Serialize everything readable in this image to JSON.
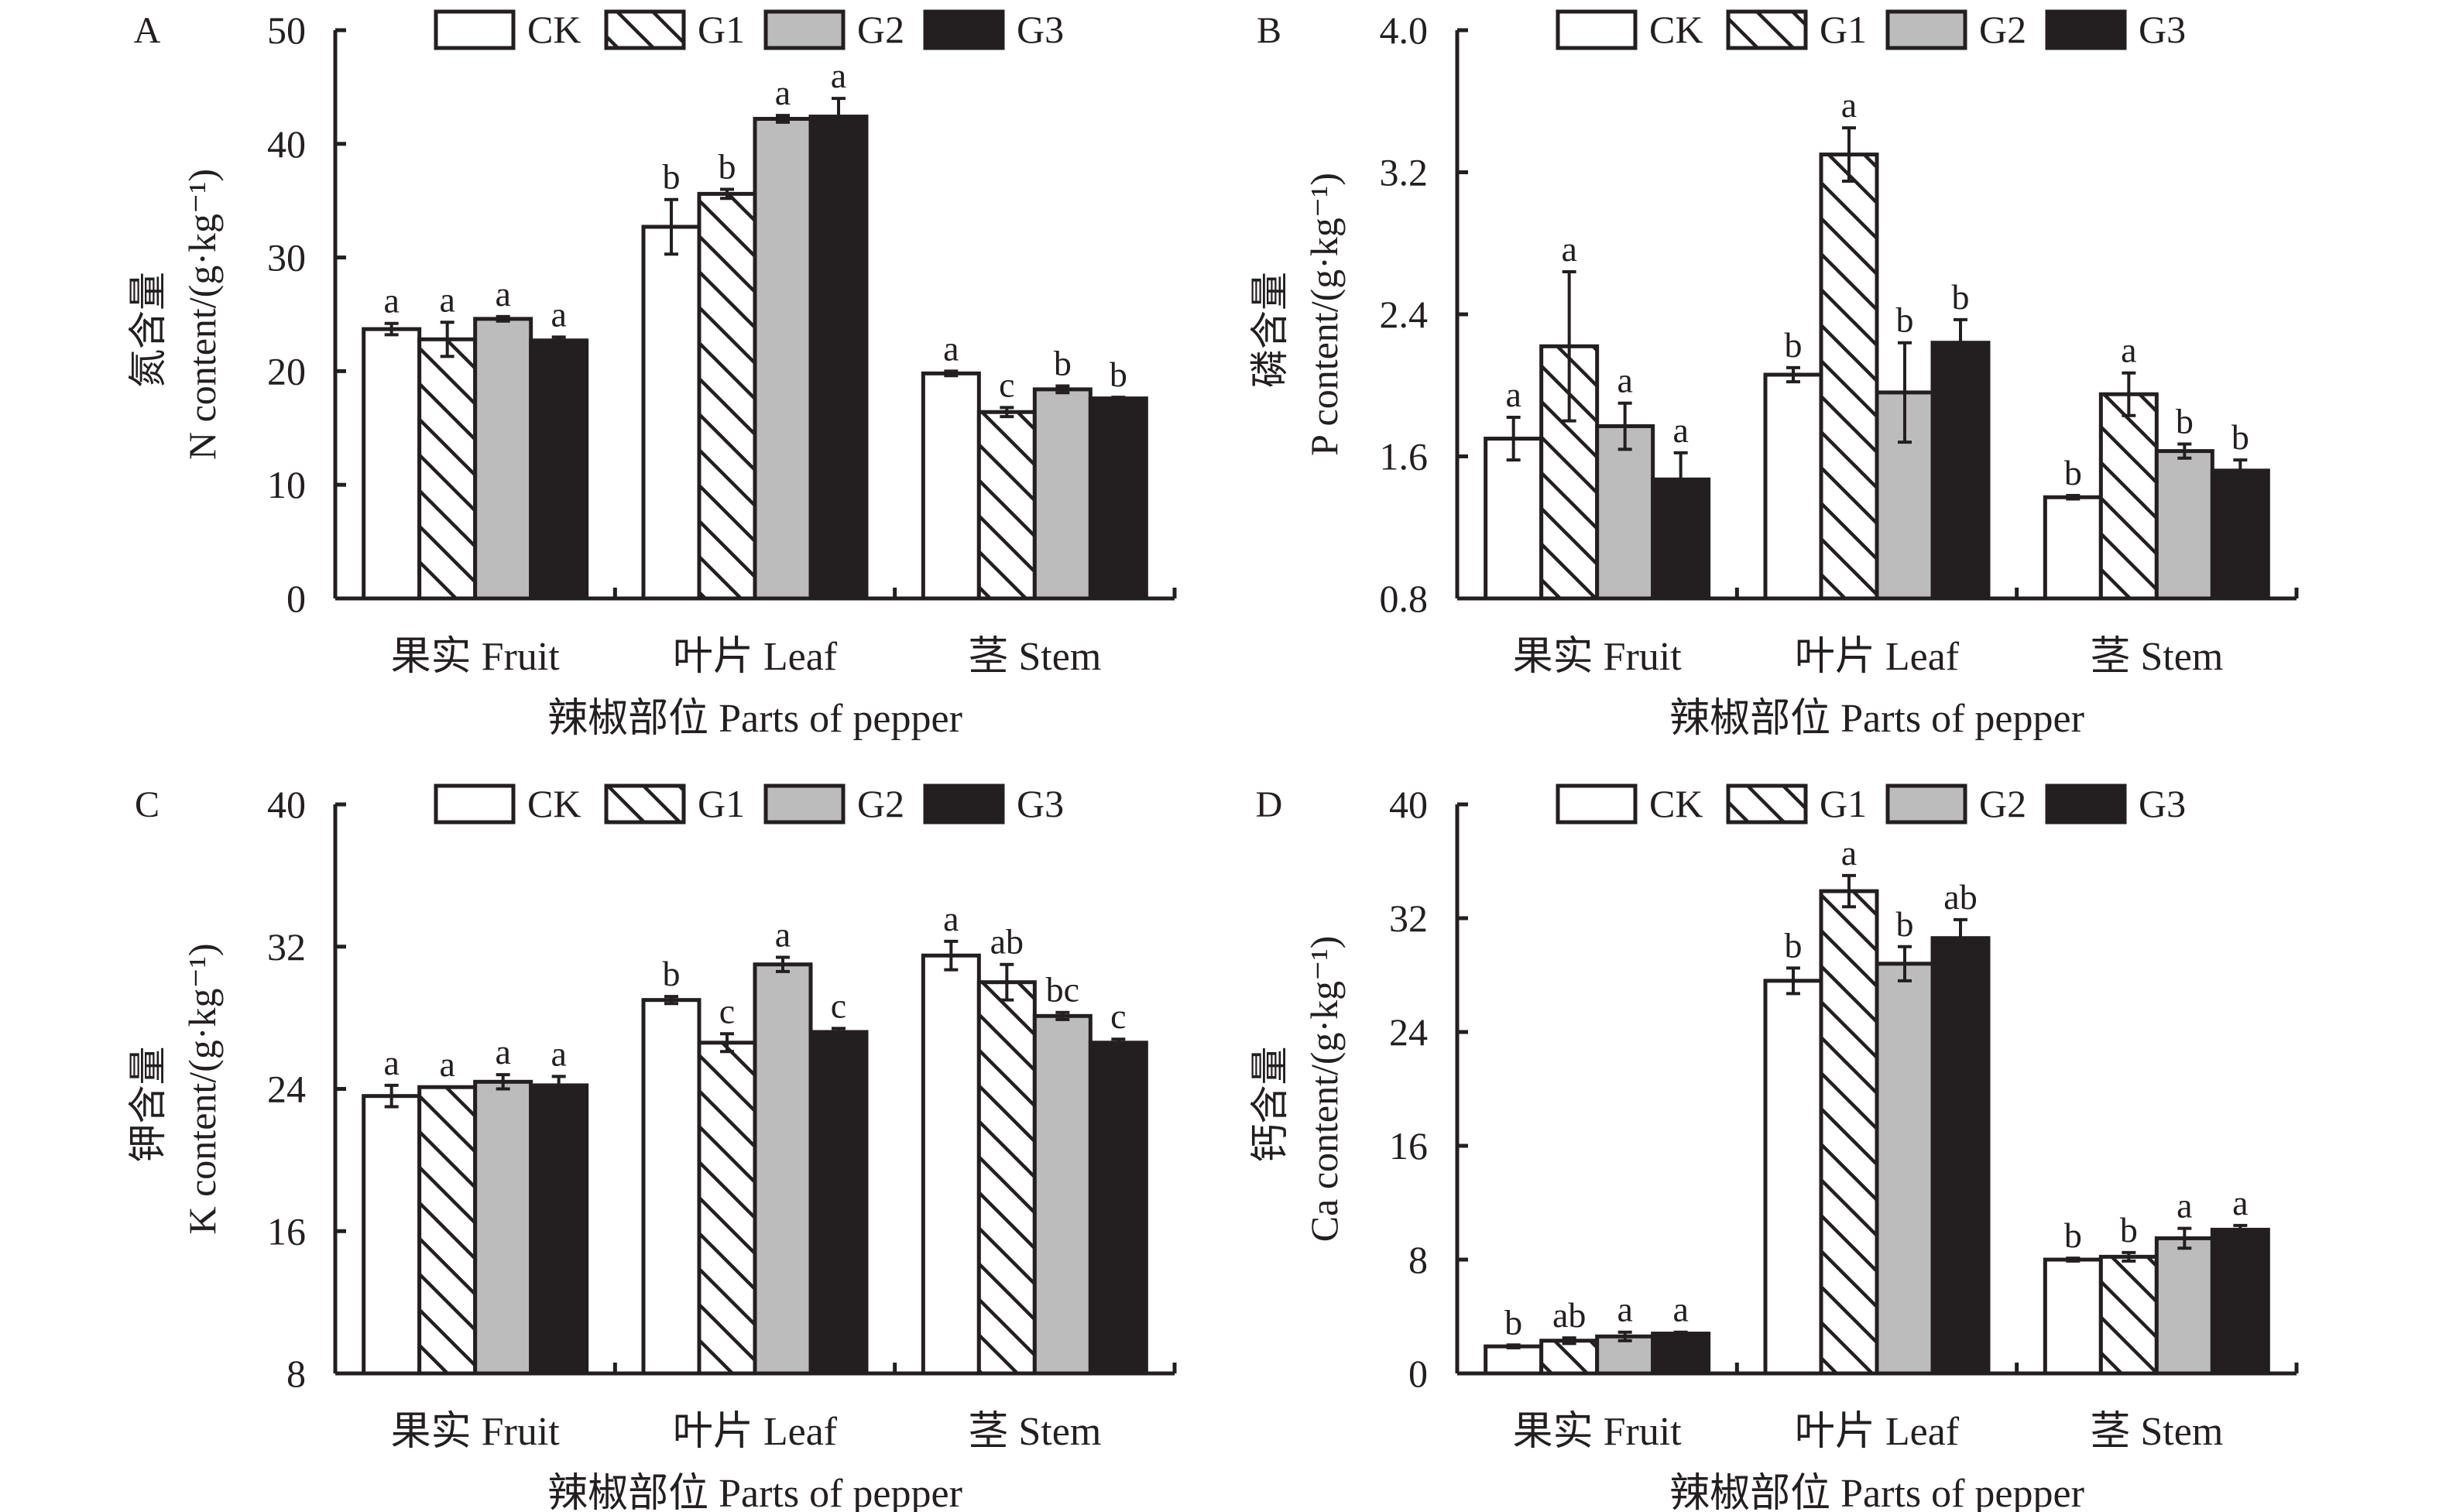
{
  "figure": {
    "legend": [
      {
        "key": "CK",
        "label": "CK",
        "fill": "#ffffff",
        "pattern": "none"
      },
      {
        "key": "G1",
        "label": "G1",
        "fill": "#ffffff",
        "pattern": "diagonal-hatch"
      },
      {
        "key": "G2",
        "label": "G2",
        "fill": "#bcbcbc",
        "pattern": "none"
      },
      {
        "key": "G3",
        "label": "G3",
        "fill": "#231f20",
        "pattern": "none"
      }
    ],
    "colors": {
      "ink": "#231f20",
      "gray": "#bcbcbc",
      "white": "#ffffff"
    }
  },
  "chart_data": [
    {
      "panel": "A",
      "type": "bar",
      "title": "",
      "ylabel_cn": "氮含量",
      "ylabel_en": "N content/(g·kg⁻¹)",
      "xlabel": "辣椒部位 Parts of pepper",
      "categories": [
        "果实 Fruit",
        "叶片 Leaf",
        "茎 Stem"
      ],
      "ylim": [
        0,
        50
      ],
      "yticks": [
        0,
        10,
        20,
        30,
        40,
        50
      ],
      "ytick_labels": [
        "0",
        "10",
        "20",
        "30",
        "40",
        "50"
      ],
      "legend_position": "top-center",
      "grid": false,
      "series": [
        {
          "name": "CK",
          "values": [
            23.7,
            32.7,
            19.8
          ],
          "errors": [
            0.5,
            2.4,
            0.2
          ],
          "letters": [
            "a",
            "b",
            "a"
          ]
        },
        {
          "name": "G1",
          "values": [
            22.8,
            35.6,
            16.4
          ],
          "errors": [
            1.5,
            0.4,
            0.4
          ],
          "letters": [
            "a",
            "b",
            "c"
          ]
        },
        {
          "name": "G2",
          "values": [
            24.6,
            42.2,
            18.4
          ],
          "errors": [
            0.2,
            0.3,
            0.3
          ],
          "letters": [
            "a",
            "a",
            "b"
          ]
        },
        {
          "name": "G3",
          "values": [
            22.7,
            42.4,
            17.6
          ],
          "errors": [
            0.3,
            1.6,
            0.1
          ],
          "letters": [
            "a",
            "a",
            "b"
          ]
        }
      ]
    },
    {
      "panel": "B",
      "type": "bar",
      "title": "",
      "ylabel_cn": "磷含量",
      "ylabel_en": "P content/(g·kg⁻¹)",
      "xlabel": "辣椒部位 Parts of pepper",
      "categories": [
        "果实 Fruit",
        "叶片 Leaf",
        "茎 Stem"
      ],
      "ylim": [
        0.8,
        4.0
      ],
      "yticks": [
        0.8,
        1.6,
        2.4,
        3.2,
        4.0
      ],
      "ytick_labels": [
        "0.8",
        "1.6",
        "2.4",
        "3.2",
        "4.0"
      ],
      "legend_position": "top-center",
      "grid": false,
      "series": [
        {
          "name": "CK",
          "values": [
            1.7,
            2.06,
            1.37
          ],
          "errors": [
            0.12,
            0.04,
            0.01
          ],
          "letters": [
            "a",
            "b",
            "b"
          ]
        },
        {
          "name": "G1",
          "values": [
            2.22,
            3.3,
            1.95
          ],
          "errors": [
            0.42,
            0.15,
            0.12
          ],
          "letters": [
            "a",
            "a",
            "a"
          ]
        },
        {
          "name": "G2",
          "values": [
            1.77,
            1.96,
            1.63
          ],
          "errors": [
            0.13,
            0.28,
            0.04
          ],
          "letters": [
            "a",
            "b",
            "b"
          ]
        },
        {
          "name": "G3",
          "values": [
            1.47,
            2.24,
            1.52
          ],
          "errors": [
            0.15,
            0.13,
            0.06
          ],
          "letters": [
            "a",
            "b",
            "b"
          ]
        }
      ]
    },
    {
      "panel": "C",
      "type": "bar",
      "title": "",
      "ylabel_cn": "钾含量",
      "ylabel_en": "K content/(g·kg⁻¹)",
      "xlabel": "辣椒部位 Parts of pepper",
      "categories": [
        "果实 Fruit",
        "叶片 Leaf",
        "茎 Stem"
      ],
      "ylim": [
        8,
        40
      ],
      "yticks": [
        8,
        16,
        24,
        32,
        40
      ],
      "ytick_labels": [
        "8",
        "16",
        "24",
        "32",
        "40"
      ],
      "legend_position": "top-center",
      "grid": false,
      "series": [
        {
          "name": "CK",
          "values": [
            23.6,
            29.0,
            31.5
          ],
          "errors": [
            0.6,
            0.2,
            0.8
          ],
          "letters": [
            "a",
            "b",
            "a"
          ]
        },
        {
          "name": "G1",
          "values": [
            24.1,
            26.6,
            30.0
          ],
          "errors": [
            0.0,
            0.5,
            1.0
          ],
          "letters": [
            "a",
            "c",
            "ab"
          ]
        },
        {
          "name": "G2",
          "values": [
            24.4,
            31.0,
            28.1
          ],
          "errors": [
            0.4,
            0.4,
            0.2
          ],
          "letters": [
            "a",
            "a",
            "bc"
          ]
        },
        {
          "name": "G3",
          "values": [
            24.2,
            27.2,
            26.6
          ],
          "errors": [
            0.5,
            0.2,
            0.2
          ],
          "letters": [
            "a",
            "c",
            "c"
          ]
        }
      ]
    },
    {
      "panel": "D",
      "type": "bar",
      "title": "",
      "ylabel_cn": "钙含量",
      "ylabel_en": "Ca content/(g·kg⁻¹)",
      "xlabel": "辣椒部位 Parts of pepper",
      "categories": [
        "果实 Fruit",
        "叶片 Leaf",
        "茎 Stem"
      ],
      "ylim": [
        0,
        40
      ],
      "yticks": [
        0,
        8,
        16,
        24,
        32,
        40
      ],
      "ytick_labels": [
        "0",
        "8",
        "16",
        "24",
        "32",
        "40"
      ],
      "legend_position": "top-center",
      "grid": false,
      "series": [
        {
          "name": "CK",
          "values": [
            1.9,
            27.6,
            8.0
          ],
          "errors": [
            0.1,
            0.9,
            0.1
          ],
          "letters": [
            "b",
            "b",
            "b"
          ]
        },
        {
          "name": "G1",
          "values": [
            2.3,
            33.9,
            8.2
          ],
          "errors": [
            0.2,
            1.1,
            0.3
          ],
          "letters": [
            "ab",
            "a",
            "b"
          ]
        },
        {
          "name": "G2",
          "values": [
            2.6,
            28.8,
            9.5
          ],
          "errors": [
            0.3,
            1.2,
            0.7
          ],
          "letters": [
            "a",
            "b",
            "a"
          ]
        },
        {
          "name": "G3",
          "values": [
            2.8,
            30.6,
            10.1
          ],
          "errors": [
            0.1,
            1.3,
            0.3
          ],
          "letters": [
            "a",
            "ab",
            "a"
          ]
        }
      ]
    }
  ]
}
